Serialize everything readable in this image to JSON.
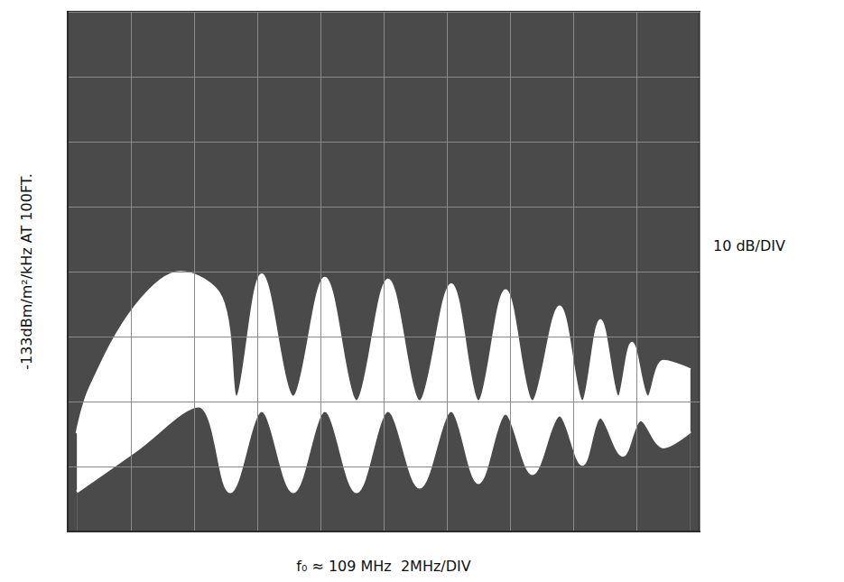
{
  "chart_data": {
    "type": "line",
    "x_label": "f₀ ≈ 109 MHz  2MHz/DIV",
    "y_label": "-133dBm/m²/kHz AT 100FT.",
    "annotations": [
      {
        "text": "10 dB/DIV"
      }
    ],
    "xlim": [
      99,
      119
    ],
    "xticks": [
      99,
      101,
      103,
      105,
      107,
      109,
      111,
      113,
      115,
      117,
      119
    ],
    "ylim": [
      -173,
      -93
    ],
    "yticks": [
      -173,
      -163,
      -153,
      -143,
      -133,
      -123,
      -113,
      -103,
      -93
    ],
    "grid": true,
    "tick_labels": false,
    "series": [
      {
        "color": "#ffffff",
        "x": [
          99.29,
          99.71,
          101.14,
          102.57,
          103.86,
          104.34,
          105.14,
          106.14,
          107.14,
          108.14,
          109.14,
          110.14,
          111.14,
          112.0,
          112.86,
          113.71,
          114.57,
          115.29,
          115.86,
          116.43,
          116.86,
          117.37,
          117.86,
          118.71
        ],
        "values": [
          -157.9,
          -150.9,
          -138.4,
          -133.1,
          -137.0,
          -152.3,
          -133.5,
          -152.3,
          -134.0,
          -153.0,
          -134.3,
          -153.0,
          -135.0,
          -153.0,
          -135.9,
          -153.0,
          -138.4,
          -153.0,
          -140.5,
          -152.3,
          -144.0,
          -152.3,
          -146.8,
          -148.1
        ]
      },
      {
        "color": "#ffffff",
        "x": [
          99.29,
          101.14,
          103.14,
          104.14,
          105.14,
          106.14,
          107.14,
          108.14,
          109.14,
          110.14,
          111.14,
          112.0,
          112.86,
          113.71,
          114.57,
          115.29,
          115.86,
          116.57,
          117.14,
          117.86,
          118.71
        ],
        "values": [
          -166.9,
          -160.6,
          -153.7,
          -166.9,
          -154.4,
          -166.9,
          -154.4,
          -166.9,
          -154.4,
          -166.2,
          -154.4,
          -165.5,
          -154.8,
          -164.1,
          -155.1,
          -162.7,
          -155.4,
          -161.3,
          -155.8,
          -160.0,
          -157.6
        ]
      }
    ]
  }
}
